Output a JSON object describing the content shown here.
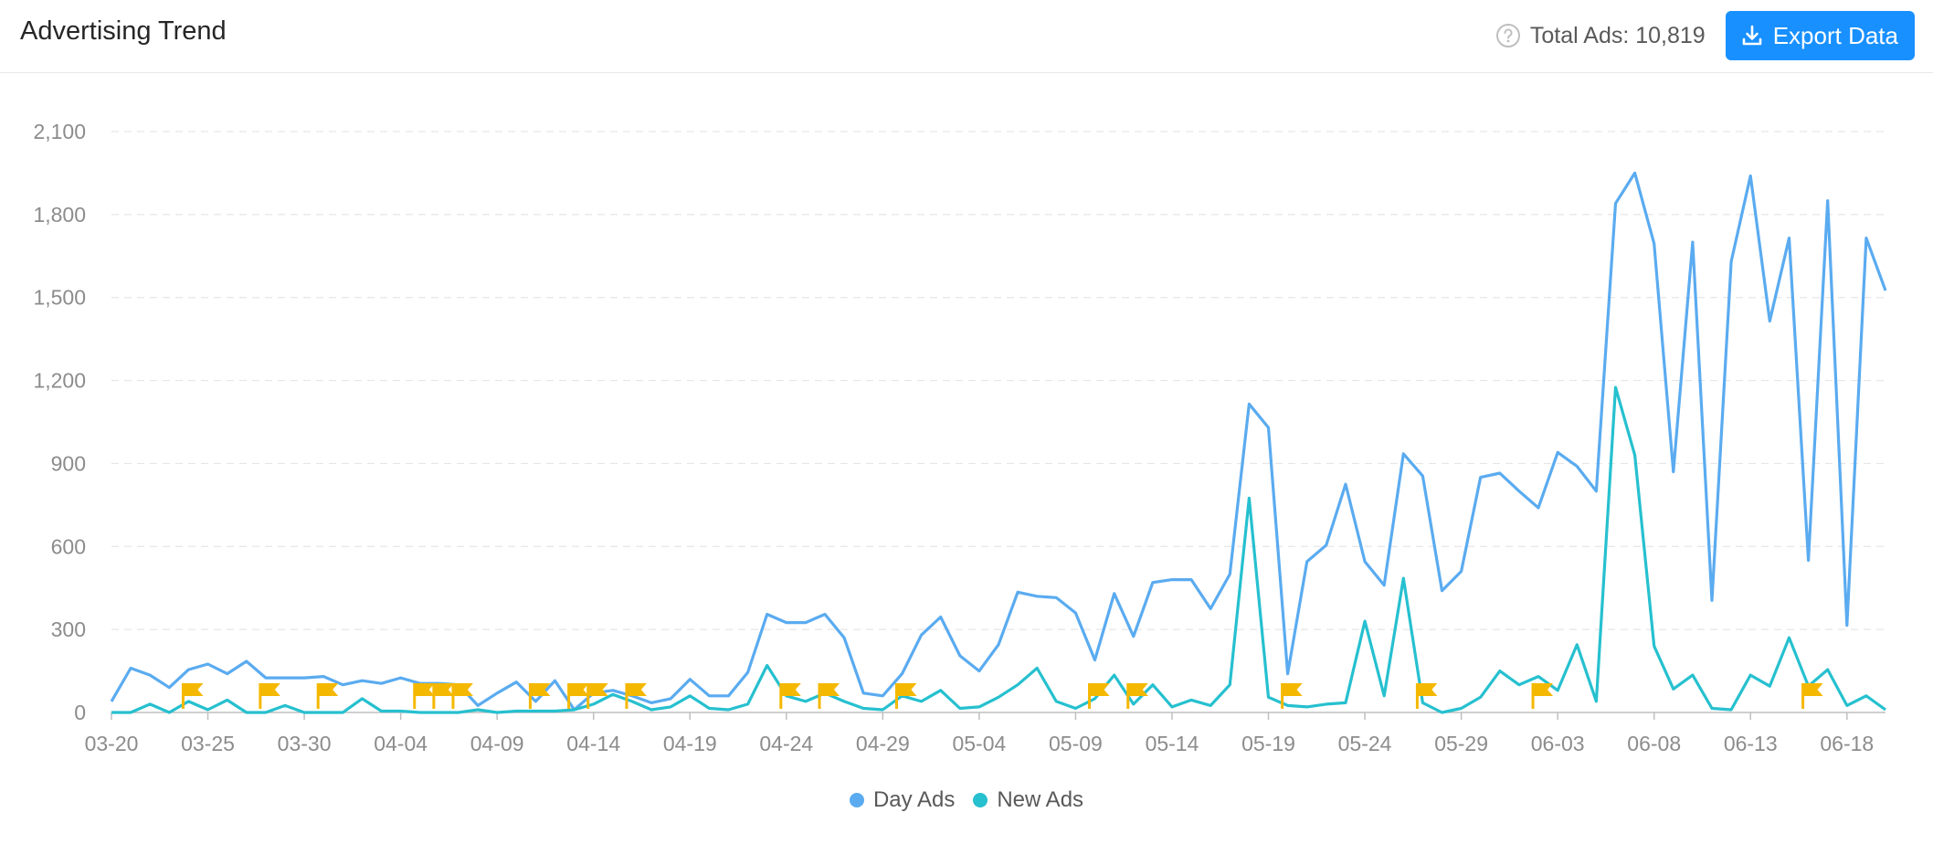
{
  "header": {
    "title": "Advertising Trend",
    "help_icon": "question-circle-icon",
    "total_label": "Total Ads: 10,819",
    "export_label": "Export Data",
    "export_icon": "download-icon",
    "export_color": "#1890ff"
  },
  "legend": [
    {
      "label": "Day Ads",
      "color": "#5aabf0"
    },
    {
      "label": "New Ads",
      "color": "#26c0cf"
    }
  ],
  "chart_data": {
    "type": "line",
    "title": "",
    "xlabel": "",
    "ylabel": "",
    "ylim": [
      0,
      2100
    ],
    "yticks": [
      0,
      300,
      600,
      900,
      1200,
      1500,
      1800,
      2100
    ],
    "ytick_labels": [
      "0",
      "300",
      "600",
      "900",
      "1,200",
      "1,500",
      "1,800",
      "2,100"
    ],
    "grid": "horizontal dashed",
    "legend_position": "bottom-center",
    "x": [
      "03-20",
      "03-21",
      "03-22",
      "03-23",
      "03-24",
      "03-25",
      "03-26",
      "03-27",
      "03-28",
      "03-29",
      "03-30",
      "03-31",
      "04-01",
      "04-02",
      "04-03",
      "04-04",
      "04-05",
      "04-06",
      "04-07",
      "04-08",
      "04-09",
      "04-10",
      "04-11",
      "04-12",
      "04-13",
      "04-14",
      "04-15",
      "04-16",
      "04-17",
      "04-18",
      "04-19",
      "04-20",
      "04-21",
      "04-22",
      "04-23",
      "04-24",
      "04-25",
      "04-26",
      "04-27",
      "04-28",
      "04-29",
      "04-30",
      "05-01",
      "05-02",
      "05-03",
      "05-04",
      "05-05",
      "05-06",
      "05-07",
      "05-08",
      "05-09",
      "05-10",
      "05-11",
      "05-12",
      "05-13",
      "05-14",
      "05-15",
      "05-16",
      "05-17",
      "05-18",
      "05-19",
      "05-20",
      "05-21",
      "05-22",
      "05-23",
      "05-24",
      "05-25",
      "05-26",
      "05-27",
      "05-28",
      "05-29",
      "05-30",
      "05-31",
      "06-01",
      "06-02",
      "06-03",
      "06-04",
      "06-05",
      "06-06",
      "06-07",
      "06-08",
      "06-09",
      "06-10",
      "06-11",
      "06-12",
      "06-13",
      "06-14",
      "06-15",
      "06-16",
      "06-17",
      "06-18",
      "06-19",
      "06-20"
    ],
    "xtick_labels": [
      "03-20",
      "03-25",
      "03-30",
      "04-04",
      "04-09",
      "04-14",
      "04-19",
      "04-24",
      "04-29",
      "05-04",
      "05-09",
      "05-14",
      "05-19",
      "05-24",
      "05-29",
      "06-03",
      "06-08",
      "06-13",
      "06-18"
    ],
    "series": [
      {
        "name": "Day Ads",
        "color": "#5aabf0",
        "values": [
          40,
          160,
          135,
          90,
          155,
          175,
          140,
          185,
          125,
          125,
          125,
          130,
          100,
          115,
          105,
          125,
          105,
          105,
          100,
          25,
          70,
          110,
          40,
          115,
          10,
          70,
          80,
          60,
          35,
          50,
          120,
          60,
          60,
          145,
          355,
          325,
          325,
          355,
          270,
          70,
          60,
          140,
          280,
          345,
          205,
          150,
          245,
          435,
          420,
          415,
          360,
          190,
          430,
          275,
          470,
          480,
          480,
          375,
          500,
          1115,
          1030,
          140,
          545,
          605,
          825,
          545,
          460,
          935,
          855,
          440,
          510,
          850,
          865,
          800,
          740,
          940,
          890,
          800,
          1840,
          1950,
          1695,
          870,
          1700,
          405,
          1630,
          1940,
          1415,
          1715,
          550,
          1850,
          315,
          1715,
          1525
        ]
      },
      {
        "name": "New Ads",
        "color": "#26c0cf",
        "values": [
          0,
          0,
          30,
          0,
          40,
          10,
          45,
          0,
          0,
          25,
          0,
          0,
          0,
          50,
          5,
          5,
          0,
          0,
          0,
          10,
          0,
          5,
          5,
          5,
          10,
          30,
          65,
          40,
          10,
          20,
          60,
          15,
          10,
          30,
          170,
          60,
          40,
          70,
          40,
          15,
          10,
          60,
          40,
          80,
          15,
          20,
          55,
          100,
          160,
          40,
          15,
          50,
          135,
          30,
          100,
          20,
          45,
          25,
          100,
          775,
          55,
          25,
          20,
          30,
          35,
          330,
          60,
          485,
          35,
          0,
          15,
          55,
          150,
          100,
          130,
          80,
          245,
          40,
          1175,
          930,
          240,
          85,
          135,
          15,
          10,
          135,
          95,
          270,
          95,
          155,
          25,
          60,
          10
        ]
      }
    ],
    "event_flags": [
      "03-24",
      "03-28",
      "03-31",
      "04-05",
      "04-06",
      "04-07",
      "04-11",
      "04-13",
      "04-14",
      "04-16",
      "04-24",
      "04-26",
      "04-30",
      "05-10",
      "05-12",
      "05-20",
      "05-27",
      "06-02",
      "06-16"
    ],
    "flag_color": "#f5b800"
  }
}
